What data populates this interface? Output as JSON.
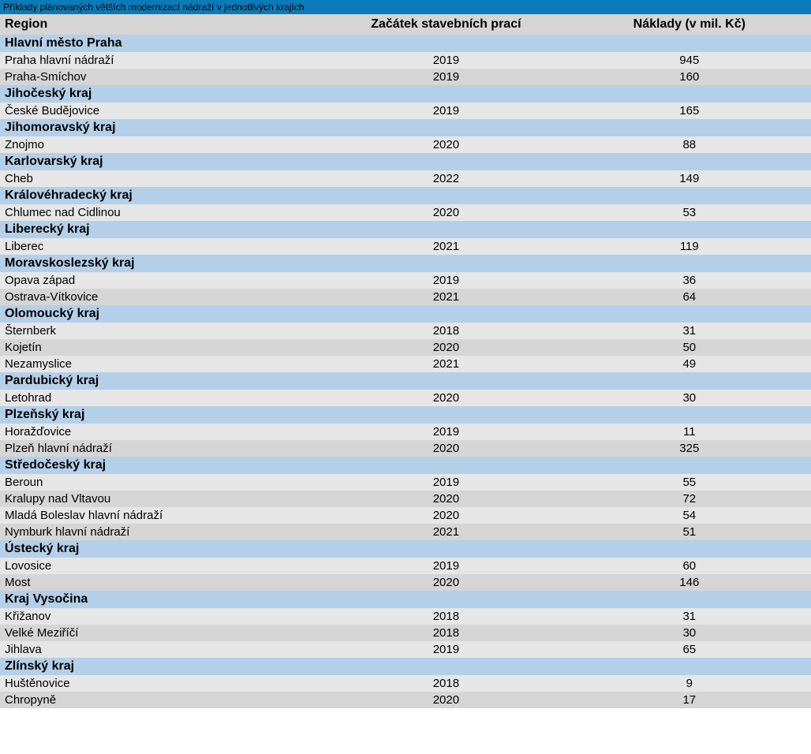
{
  "title": "Příklady plánovaných větších modernizací nádraží v jednotlivých krajích",
  "colors": {
    "title_bg": "#0a7bb8",
    "title_fg": "#000000",
    "header_bg": "#d5d5d5",
    "group_bg": "#b4cfe8",
    "row_alt1": "#d5d5d5",
    "row_alt2": "#e6e6e6",
    "text": "#000000"
  },
  "columns": [
    "Region",
    "Začátek stavebních prací",
    "Náklady (v mil. Kč)"
  ],
  "column_widths_pct": [
    40,
    30,
    30
  ],
  "font": {
    "header_size": 16,
    "row_size": 15,
    "title_size": 12
  },
  "groups": [
    {
      "name": "Hlavní město Praha",
      "rows": [
        {
          "station": "Praha hlavní nádraží",
          "year": "2019",
          "cost": "945"
        },
        {
          "station": "Praha-Smíchov",
          "year": "2019",
          "cost": "160"
        }
      ]
    },
    {
      "name": "Jihočeský kraj",
      "rows": [
        {
          "station": "České Budějovice",
          "year": "2019",
          "cost": "165"
        }
      ]
    },
    {
      "name": "Jihomoravský kraj",
      "rows": [
        {
          "station": "Znojmo",
          "year": "2020",
          "cost": "88"
        }
      ]
    },
    {
      "name": "Karlovarský kraj",
      "rows": [
        {
          "station": "Cheb",
          "year": "2022",
          "cost": "149"
        }
      ]
    },
    {
      "name": "Královéhradecký kraj",
      "rows": [
        {
          "station": "Chlumec nad Cidlinou",
          "year": "2020",
          "cost": "53"
        }
      ]
    },
    {
      "name": "Liberecký kraj",
      "rows": [
        {
          "station": "Liberec",
          "year": "2021",
          "cost": "119"
        }
      ]
    },
    {
      "name": "Moravskoslezský kraj",
      "rows": [
        {
          "station": "Opava západ",
          "year": "2019",
          "cost": "36"
        },
        {
          "station": "Ostrava-Vítkovice",
          "year": "2021",
          "cost": "64"
        }
      ]
    },
    {
      "name": "Olomoucký kraj",
      "rows": [
        {
          "station": "Šternberk",
          "year": "2018",
          "cost": "31"
        },
        {
          "station": "Kojetín",
          "year": "2020",
          "cost": "50"
        },
        {
          "station": "Nezamyslice",
          "year": "2021",
          "cost": "49"
        }
      ]
    },
    {
      "name": "Pardubický kraj",
      "rows": [
        {
          "station": "Letohrad",
          "year": "2020",
          "cost": "30"
        }
      ]
    },
    {
      "name": "Plzeňský kraj",
      "rows": [
        {
          "station": "Horažďovice",
          "year": "2019",
          "cost": "11"
        },
        {
          "station": "Plzeň hlavní nádraží",
          "year": "2020",
          "cost": "325"
        }
      ]
    },
    {
      "name": "Středočeský kraj",
      "rows": [
        {
          "station": "Beroun",
          "year": "2019",
          "cost": "55"
        },
        {
          "station": "Kralupy nad Vltavou",
          "year": "2020",
          "cost": "72"
        },
        {
          "station": "Mladá Boleslav hlavní nádraží",
          "year": "2020",
          "cost": "54"
        },
        {
          "station": "Nymburk hlavní nádraží",
          "year": "2021",
          "cost": "51"
        }
      ]
    },
    {
      "name": "Ústecký kraj",
      "rows": [
        {
          "station": "Lovosice",
          "year": "2019",
          "cost": "60"
        },
        {
          "station": "Most",
          "year": "2020",
          "cost": "146"
        }
      ]
    },
    {
      "name": "Kraj Vysočina",
      "rows": [
        {
          "station": "Křižanov",
          "year": "2018",
          "cost": "31"
        },
        {
          "station": "Velké Meziříčí",
          "year": "2018",
          "cost": "30"
        },
        {
          "station": "Jihlava",
          "year": "2019",
          "cost": "65"
        }
      ]
    },
    {
      "name": "Zlínský kraj",
      "rows": [
        {
          "station": "Huštěnovice",
          "year": "2018",
          "cost": "9"
        },
        {
          "station": "Chropyně",
          "year": "2020",
          "cost": "17"
        }
      ]
    }
  ]
}
